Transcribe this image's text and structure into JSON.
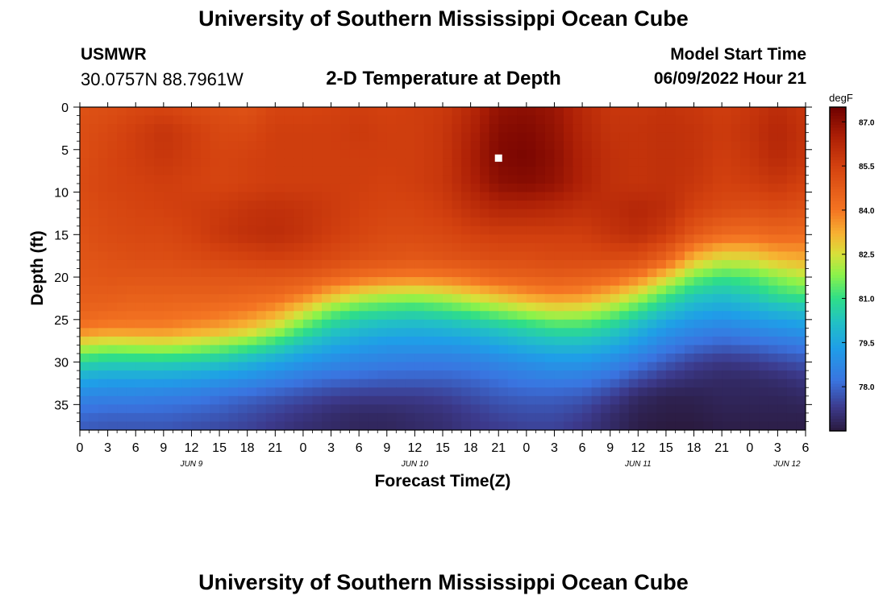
{
  "page": {
    "title": "University of Southern Mississippi Ocean Cube",
    "footer_title": "University of Southern Mississippi Ocean Cube",
    "station": "USMWR",
    "coordinates": "30.0757N  88.7961W",
    "subtitle": "2-D Temperature at Depth",
    "model_start_label": "Model Start Time",
    "model_start_value": "06/09/2022 Hour 21"
  },
  "chart_data": {
    "type": "heatmap",
    "title": "2-D Temperature at Depth",
    "xlabel": "Forecast Time(Z)",
    "ylabel": "Depth (ft)",
    "x_unit": "hours from Jun 9 00Z",
    "xlim": [
      0,
      78
    ],
    "ylim": [
      0,
      38
    ],
    "y_inverted": true,
    "x_ticks": [
      {
        "h": 0,
        "label": "0"
      },
      {
        "h": 3,
        "label": "3"
      },
      {
        "h": 6,
        "label": "6"
      },
      {
        "h": 9,
        "label": "9"
      },
      {
        "h": 12,
        "label": "12"
      },
      {
        "h": 15,
        "label": "15"
      },
      {
        "h": 18,
        "label": "18"
      },
      {
        "h": 21,
        "label": "21"
      },
      {
        "h": 24,
        "label": "0"
      },
      {
        "h": 27,
        "label": "3"
      },
      {
        "h": 30,
        "label": "6"
      },
      {
        "h": 33,
        "label": "9"
      },
      {
        "h": 36,
        "label": "12"
      },
      {
        "h": 39,
        "label": "15"
      },
      {
        "h": 42,
        "label": "18"
      },
      {
        "h": 45,
        "label": "21"
      },
      {
        "h": 48,
        "label": "0"
      },
      {
        "h": 51,
        "label": "3"
      },
      {
        "h": 54,
        "label": "6"
      },
      {
        "h": 57,
        "label": "9"
      },
      {
        "h": 60,
        "label": "12"
      },
      {
        "h": 63,
        "label": "15"
      },
      {
        "h": 66,
        "label": "18"
      },
      {
        "h": 69,
        "label": "21"
      },
      {
        "h": 72,
        "label": "0"
      },
      {
        "h": 75,
        "label": "3"
      },
      {
        "h": 78,
        "label": "6"
      }
    ],
    "date_labels": [
      {
        "h": 12,
        "label": "JUN 9"
      },
      {
        "h": 36,
        "label": "JUN 10"
      },
      {
        "h": 60,
        "label": "JUN 11"
      },
      {
        "h": 76,
        "label": "JUN 12"
      }
    ],
    "y_ticks": [
      0,
      5,
      10,
      15,
      20,
      25,
      30,
      35
    ],
    "colorbar": {
      "unit": "degF",
      "min": 76.5,
      "max": 87.5,
      "ticks": [
        "87.0",
        "85.5",
        "84.0",
        "82.5",
        "81.0",
        "79.5",
        "78.0"
      ],
      "stops": [
        {
          "v": 76.5,
          "color": "#2a1a3e"
        },
        {
          "v": 77.3,
          "color": "#3c3a8c"
        },
        {
          "v": 78.2,
          "color": "#3a74e0"
        },
        {
          "v": 79.3,
          "color": "#1f9ee8"
        },
        {
          "v": 80.2,
          "color": "#22c1c4"
        },
        {
          "v": 81.0,
          "color": "#2fde88"
        },
        {
          "v": 81.8,
          "color": "#8cf24a"
        },
        {
          "v": 82.5,
          "color": "#d8e03a"
        },
        {
          "v": 83.2,
          "color": "#f7b132"
        },
        {
          "v": 84.0,
          "color": "#f47422"
        },
        {
          "v": 85.5,
          "color": "#d3410f"
        },
        {
          "v": 86.5,
          "color": "#ac1f06"
        },
        {
          "v": 87.5,
          "color": "#6e0000"
        }
      ]
    },
    "grid": {
      "hours": [
        0,
        3,
        6,
        9,
        12,
        15,
        18,
        21,
        24,
        27,
        30,
        33,
        36,
        39,
        42,
        45,
        48,
        51,
        54,
        57,
        60,
        63,
        66,
        69,
        72,
        75,
        78
      ],
      "depths": [
        0,
        3,
        6,
        9,
        12,
        15,
        18,
        20,
        22,
        24,
        26,
        28,
        30,
        32,
        34,
        36,
        38
      ],
      "temps": [
        [
          85.0,
          85.1,
          85.3,
          85.4,
          85.2,
          85.1,
          85.0,
          85.4,
          85.4,
          85.5,
          85.6,
          85.5,
          85.6,
          85.7,
          86.2,
          86.9,
          87.0,
          86.8,
          86.2,
          85.8,
          85.8,
          85.9,
          85.8,
          85.6,
          85.8,
          86.1,
          85.8
        ],
        [
          85.1,
          85.3,
          85.6,
          85.9,
          85.6,
          85.3,
          85.3,
          85.6,
          85.6,
          85.6,
          85.7,
          85.6,
          85.6,
          85.8,
          86.4,
          87.1,
          87.2,
          86.9,
          86.3,
          85.9,
          85.9,
          86.0,
          85.9,
          85.7,
          85.9,
          86.3,
          85.9
        ],
        [
          85.1,
          85.4,
          85.6,
          85.8,
          85.6,
          85.4,
          85.5,
          85.6,
          85.6,
          85.6,
          85.6,
          85.6,
          85.6,
          85.8,
          86.5,
          87.2,
          87.3,
          87.0,
          86.4,
          86.0,
          85.9,
          86.0,
          85.9,
          85.6,
          85.8,
          86.2,
          85.8
        ],
        [
          85.2,
          85.4,
          85.5,
          85.6,
          85.5,
          85.4,
          85.5,
          85.6,
          85.6,
          85.6,
          85.6,
          85.5,
          85.6,
          85.8,
          86.4,
          87.0,
          87.1,
          86.9,
          86.4,
          86.0,
          85.9,
          86.0,
          85.8,
          85.5,
          85.6,
          85.8,
          85.5
        ],
        [
          85.1,
          85.3,
          85.4,
          85.5,
          85.6,
          85.7,
          85.9,
          86.0,
          85.9,
          85.7,
          85.5,
          85.4,
          85.4,
          85.6,
          86.0,
          86.3,
          86.3,
          86.2,
          86.0,
          86.1,
          86.3,
          86.1,
          85.5,
          85.2,
          85.1,
          85.2,
          85.0
        ],
        [
          85.0,
          85.2,
          85.3,
          85.3,
          85.5,
          85.8,
          86.0,
          86.1,
          85.9,
          85.6,
          85.4,
          85.2,
          85.2,
          85.3,
          85.5,
          85.6,
          85.6,
          85.6,
          85.6,
          85.9,
          86.1,
          85.7,
          84.8,
          84.3,
          84.2,
          84.4,
          84.3
        ],
        [
          84.9,
          85.0,
          85.1,
          85.1,
          85.2,
          85.3,
          85.4,
          85.5,
          85.4,
          85.2,
          85.0,
          84.9,
          84.8,
          84.9,
          85.0,
          85.1,
          85.1,
          85.2,
          85.2,
          85.2,
          85.1,
          84.4,
          83.0,
          82.4,
          82.5,
          83.0,
          83.2
        ],
        [
          84.8,
          84.9,
          84.9,
          84.9,
          84.9,
          84.9,
          84.9,
          84.9,
          84.8,
          84.5,
          84.2,
          84.0,
          83.9,
          84.0,
          84.2,
          84.5,
          84.6,
          84.7,
          84.6,
          84.4,
          83.9,
          82.8,
          81.6,
          81.1,
          81.3,
          81.8,
          82.2
        ],
        [
          84.7,
          84.7,
          84.6,
          84.6,
          84.6,
          84.6,
          84.5,
          84.4,
          84.0,
          83.2,
          82.6,
          82.3,
          82.2,
          82.4,
          82.8,
          83.2,
          83.6,
          83.8,
          83.7,
          83.2,
          82.4,
          81.3,
          80.5,
          80.2,
          80.5,
          81.0,
          81.3
        ],
        [
          84.5,
          84.4,
          84.3,
          84.3,
          84.2,
          84.1,
          83.9,
          83.5,
          82.6,
          81.6,
          81.1,
          80.9,
          80.8,
          81.0,
          81.3,
          81.7,
          82.1,
          82.4,
          82.3,
          81.8,
          81.0,
          80.2,
          79.6,
          79.4,
          79.6,
          79.9,
          80.1
        ],
        [
          84.0,
          83.8,
          83.8,
          83.8,
          83.6,
          83.4,
          83.0,
          82.3,
          81.3,
          80.5,
          80.1,
          79.9,
          79.8,
          79.9,
          80.1,
          80.4,
          80.7,
          81.0,
          81.0,
          80.6,
          79.9,
          79.2,
          78.8,
          78.6,
          78.8,
          79.0,
          79.2
        ],
        [
          82.4,
          82.1,
          82.2,
          82.3,
          82.1,
          81.8,
          81.4,
          80.8,
          80.1,
          79.6,
          79.3,
          79.1,
          79.1,
          79.1,
          79.2,
          79.5,
          79.8,
          80.0,
          80.0,
          79.7,
          79.1,
          78.5,
          78.1,
          77.9,
          78.0,
          78.2,
          78.4
        ],
        [
          80.8,
          80.6,
          80.6,
          80.6,
          80.5,
          80.3,
          79.9,
          79.5,
          79.1,
          78.8,
          78.6,
          78.5,
          78.4,
          78.4,
          78.5,
          78.7,
          78.9,
          79.1,
          79.1,
          78.8,
          78.3,
          77.8,
          77.4,
          77.2,
          77.3,
          77.5,
          77.7
        ],
        [
          79.6,
          79.4,
          79.4,
          79.4,
          79.3,
          79.1,
          78.9,
          78.6,
          78.3,
          78.1,
          78.0,
          77.9,
          77.9,
          77.9,
          78.0,
          78.2,
          78.4,
          78.5,
          78.4,
          78.1,
          77.6,
          77.2,
          77.0,
          76.9,
          76.9,
          77.0,
          77.2
        ],
        [
          78.7,
          78.6,
          78.6,
          78.5,
          78.4,
          78.2,
          78.0,
          77.8,
          77.6,
          77.4,
          77.3,
          77.3,
          77.3,
          77.4,
          77.6,
          77.8,
          77.9,
          77.9,
          77.8,
          77.4,
          76.9,
          76.7,
          76.7,
          76.8,
          76.8,
          76.8,
          76.9
        ],
        [
          78.1,
          78.0,
          78.0,
          78.0,
          77.9,
          77.8,
          77.6,
          77.4,
          77.2,
          77.0,
          76.9,
          76.9,
          77.0,
          77.1,
          77.3,
          77.5,
          77.6,
          77.6,
          77.4,
          77.0,
          76.7,
          76.6,
          76.6,
          76.7,
          76.7,
          76.7,
          76.7
        ],
        [
          77.8,
          77.7,
          77.7,
          77.7,
          77.6,
          77.5,
          77.4,
          77.2,
          77.0,
          76.9,
          76.8,
          76.8,
          76.9,
          77.0,
          77.2,
          77.3,
          77.4,
          77.4,
          77.2,
          76.9,
          76.6,
          76.5,
          76.5,
          76.6,
          76.6,
          76.6,
          76.6
        ]
      ]
    },
    "marker": {
      "h": 45,
      "depth": 6
    }
  }
}
